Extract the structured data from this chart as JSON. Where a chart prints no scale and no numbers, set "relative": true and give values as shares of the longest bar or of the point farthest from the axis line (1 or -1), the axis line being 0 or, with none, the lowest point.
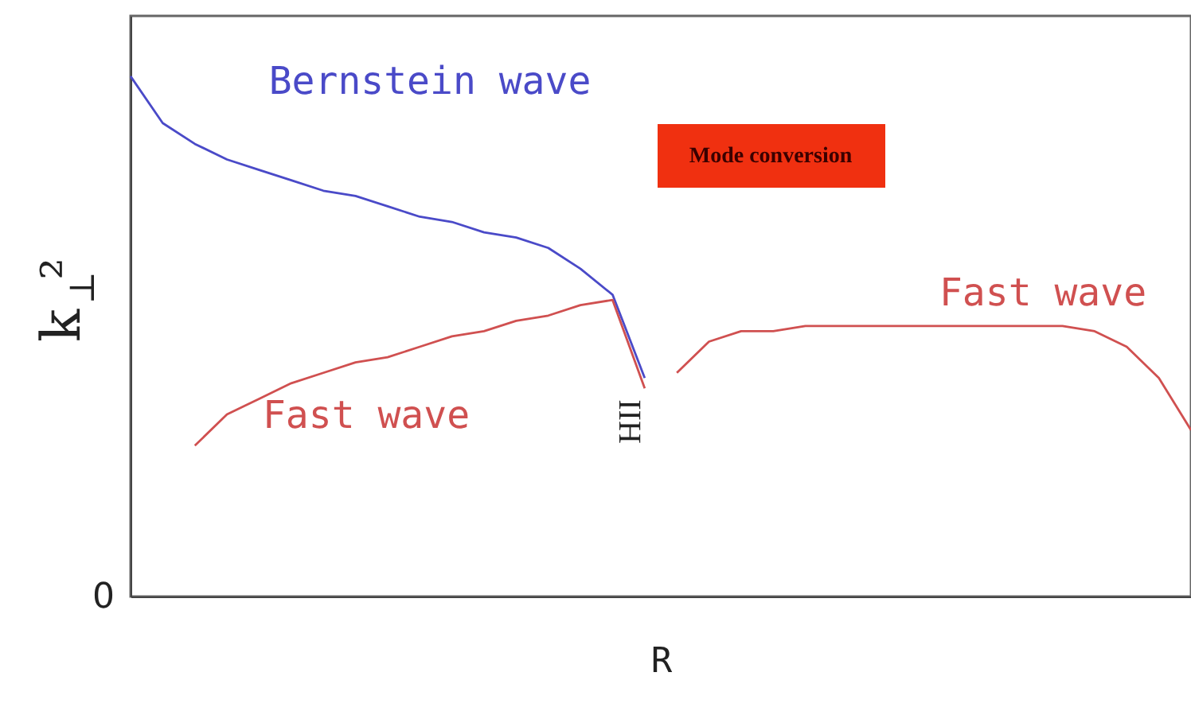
{
  "chart_data": {
    "type": "line",
    "relative": true,
    "xlabel": "R",
    "ylabel": "k$_{⊥}$²",
    "categories": [
      null,
      null,
      null,
      null,
      null,
      null,
      null,
      null,
      null,
      null,
      null,
      null,
      null,
      null,
      null,
      null,
      null,
      null,
      null,
      null,
      null,
      null,
      null,
      null,
      null,
      null,
      null,
      null,
      null,
      null,
      null,
      null,
      null,
      null
    ],
    "series": [
      {
        "name": "Bernstein wave",
        "color": "#4a4ac8",
        "values": [
          1.0,
          0.91,
          0.87,
          0.84,
          0.82,
          0.8,
          0.78,
          0.77,
          0.75,
          0.73,
          0.72,
          0.7,
          0.69,
          0.67,
          0.63,
          0.58,
          0.42,
          null,
          null,
          null,
          null,
          null,
          null,
          null,
          null,
          null,
          null,
          null,
          null,
          null,
          null,
          null,
          null,
          null
        ]
      },
      {
        "name": "Fast wave",
        "color": "#d05050",
        "values": [
          null,
          null,
          0.29,
          0.35,
          0.38,
          0.41,
          0.43,
          0.45,
          0.46,
          0.48,
          0.5,
          0.51,
          0.53,
          0.54,
          0.56,
          0.57,
          0.4,
          null,
          null,
          null,
          null,
          null,
          null,
          null,
          null,
          null,
          null,
          null,
          null,
          null,
          null,
          null,
          null,
          null
        ]
      },
      {
        "name": "Fast wave",
        "color": "#d05050",
        "values": [
          null,
          null,
          null,
          null,
          null,
          null,
          null,
          null,
          null,
          null,
          null,
          null,
          null,
          null,
          null,
          null,
          null,
          0.43,
          0.49,
          0.51,
          0.51,
          0.52,
          0.52,
          0.52,
          0.52,
          0.52,
          0.52,
          0.52,
          0.52,
          0.52,
          0.51,
          0.48,
          0.42,
          0.32
        ]
      }
    ],
    "annotations": [
      "Mode conversion",
      "IIH",
      "0"
    ],
    "grid": false,
    "line_style": "solid",
    "marker": "none"
  }
}
